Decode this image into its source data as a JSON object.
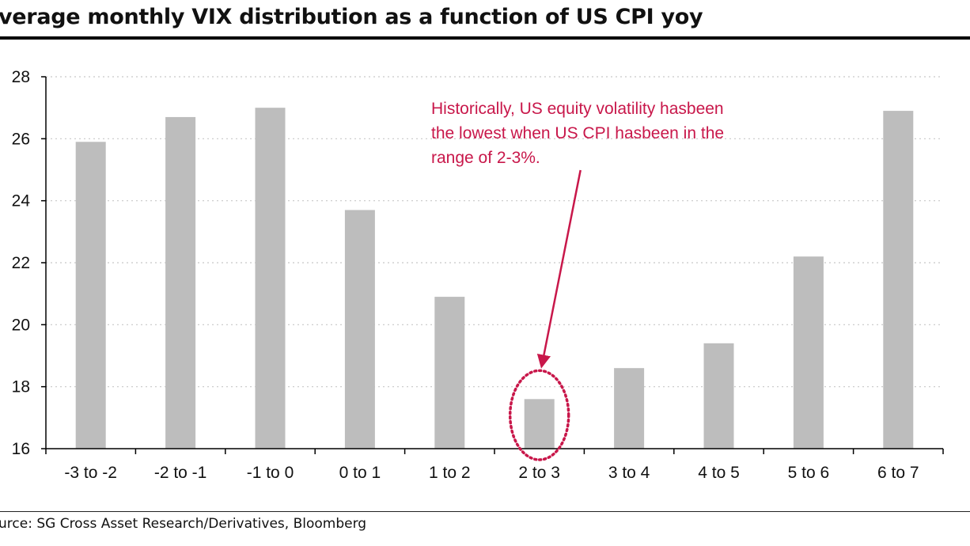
{
  "title": "verage monthly VIX distribution as a function of US CPI yoy",
  "source": "urce: SG Cross Asset Research/Derivatives, Bloomberg",
  "colors": {
    "bar": "#bdbdbd",
    "annotation": "#c8174a",
    "grid": "#c8c8c8",
    "axis": "#000000"
  },
  "chart_data": {
    "type": "bar",
    "title": "verage monthly VIX distribution as a function of US CPI yoy",
    "categories": [
      "-3 to -2",
      "-2 to -1",
      "-1 to 0",
      "0 to 1",
      "1 to 2",
      "2 to 3",
      "3 to 4",
      "4 to 5",
      "5 to 6",
      "6 to 7"
    ],
    "values": [
      25.9,
      26.7,
      27.0,
      23.7,
      20.9,
      17.6,
      18.6,
      19.4,
      22.2,
      26.9
    ],
    "ylim": [
      16,
      28
    ],
    "yticks": [
      16,
      18,
      20,
      22,
      24,
      26,
      28
    ],
    "ytick_labels": [
      "16",
      "18",
      "20",
      "22",
      "24",
      "26",
      "28"
    ],
    "xlabel": "",
    "ylabel": "",
    "grid": "horizontal dotted",
    "legend": "none",
    "annotation": {
      "lines": [
        "Historically, US equity volatility hasbeen",
        "the lowest when US CPI hasbeen in the",
        "range of 2-3%."
      ],
      "target_category": "2 to 3",
      "highlight": "dotted ellipse around bar"
    }
  }
}
